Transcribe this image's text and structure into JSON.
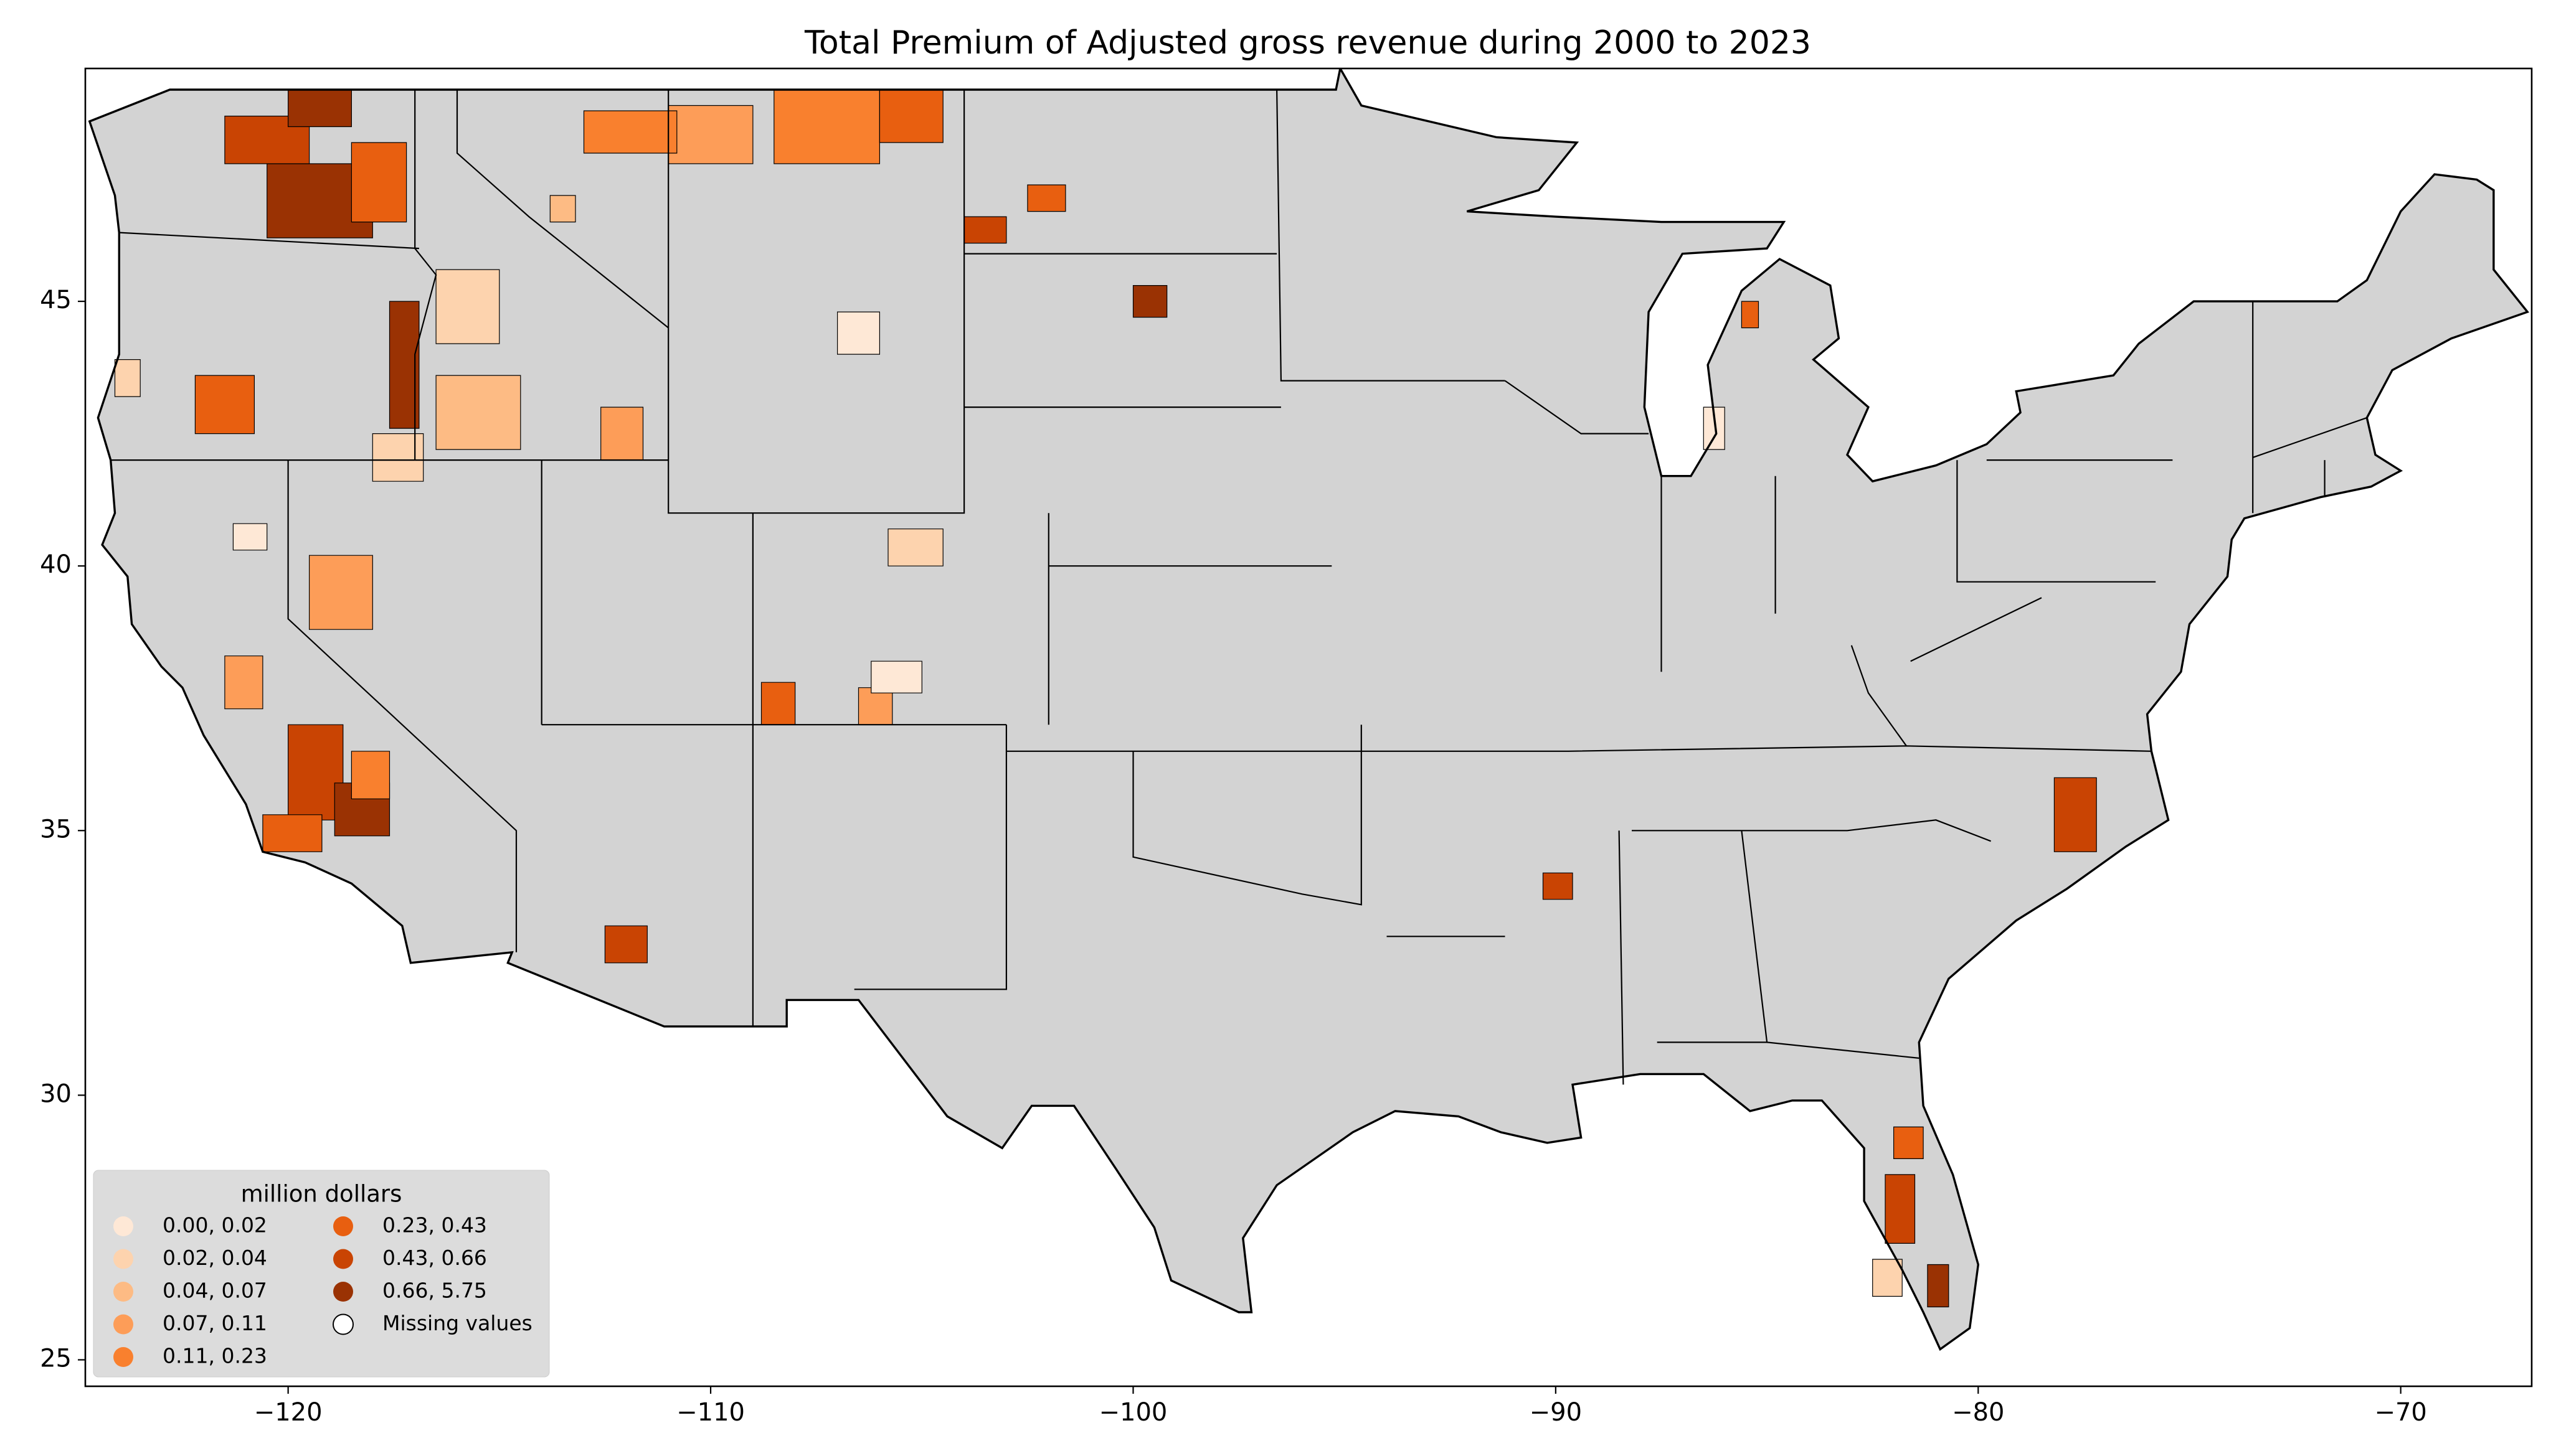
{
  "chart_data": {
    "type": "choropleth",
    "title": "Total  Premium of Adjusted gross revenue during 2000 to 2023",
    "xlim": [
      -124.8,
      -66.9
    ],
    "ylim": [
      24.5,
      49.4
    ],
    "xticks": [
      {
        "value": -120,
        "label": "−120"
      },
      {
        "value": -110,
        "label": "−110"
      },
      {
        "value": -100,
        "label": "−100"
      },
      {
        "value": -90,
        "label": "−90"
      },
      {
        "value": -80,
        "label": "−80"
      },
      {
        "value": -70,
        "label": "−70"
      }
    ],
    "yticks": [
      25,
      30,
      35,
      40,
      45
    ],
    "missing_color": "#d3d3d3",
    "legend": {
      "title": "million dollars",
      "position": "lower left",
      "entries": [
        {
          "label": "0.00, 0.02",
          "color": "#fee8d6"
        },
        {
          "label": "0.02, 0.04",
          "color": "#fdd3ae"
        },
        {
          "label": "0.04, 0.07",
          "color": "#fdbb84"
        },
        {
          "label": "0.07, 0.11",
          "color": "#fd9d58"
        },
        {
          "label": "0.11, 0.23",
          "color": "#f9802e"
        },
        {
          "label": "0.23, 0.43",
          "color": "#e85f10"
        },
        {
          "label": "0.43, 0.66",
          "color": "#c94403"
        },
        {
          "label": "0.66, 5.75",
          "color": "#9a3203"
        },
        {
          "label": "Missing values",
          "color": "#ffffff"
        }
      ]
    }
  }
}
